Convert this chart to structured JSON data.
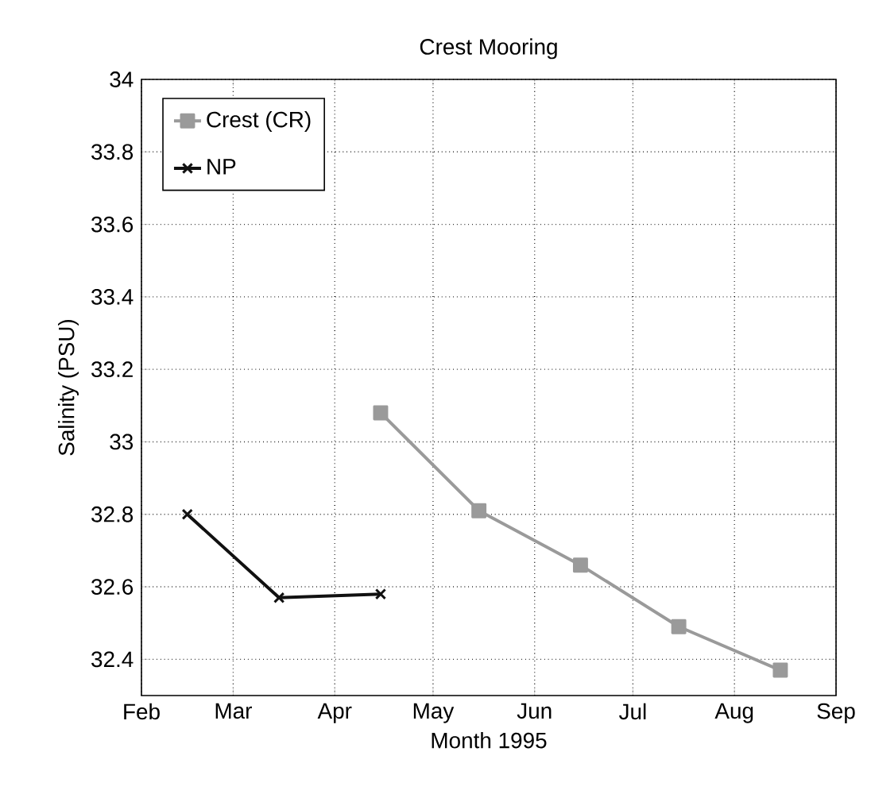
{
  "chart_data": {
    "type": "line",
    "title": "Crest Mooring",
    "xlabel": "Month 1995",
    "ylabel": "Salinity (PSU)",
    "xlim": [
      "1995-02-01",
      "1995-09-01"
    ],
    "xticks": [
      {
        "value": "1995-02-01",
        "label": "Feb"
      },
      {
        "value": "1995-03-01",
        "label": "Mar"
      },
      {
        "value": "1995-04-01",
        "label": "Apr"
      },
      {
        "value": "1995-05-01",
        "label": "May"
      },
      {
        "value": "1995-06-01",
        "label": "Jun"
      },
      {
        "value": "1995-07-01",
        "label": "Jul"
      },
      {
        "value": "1995-08-01",
        "label": "Aug"
      },
      {
        "value": "1995-09-01",
        "label": "Sep"
      }
    ],
    "ylim": [
      32.3,
      34
    ],
    "yticks": [
      32.4,
      32.6,
      32.8,
      33,
      33.2,
      33.4,
      33.6,
      33.8,
      34
    ],
    "grid": true,
    "legend": "top left",
    "line_style": "solid",
    "series": [
      {
        "name": "Crest (CR)",
        "color": "#9a9a9a",
        "marker": "square",
        "x": [
          "1995-04-15",
          "1995-05-15",
          "1995-06-15",
          "1995-07-15",
          "1995-08-15"
        ],
        "values": [
          33.08,
          32.81,
          32.66,
          32.49,
          32.37
        ]
      },
      {
        "name": "NP",
        "color": "#111111",
        "marker": "cross",
        "x": [
          "1995-02-15",
          "1995-03-15",
          "1995-04-15"
        ],
        "values": [
          32.8,
          32.57,
          32.58
        ]
      }
    ]
  }
}
